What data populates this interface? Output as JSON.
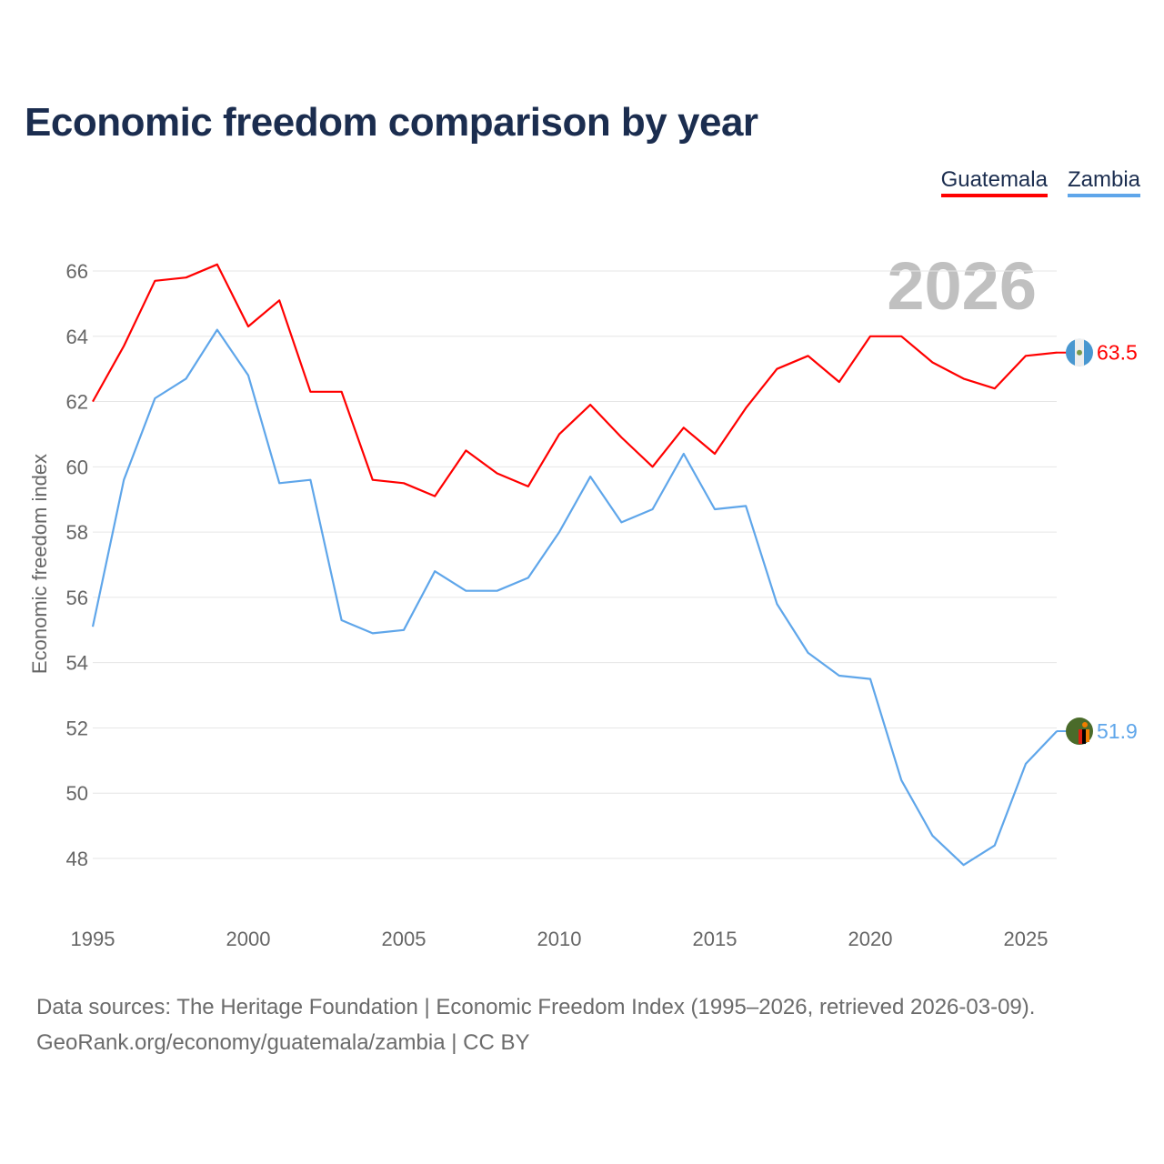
{
  "title": "Economic freedom comparison by year",
  "year_watermark": "2026",
  "footer": {
    "line1": "Data sources: The Heritage Foundation | Economic Freedom Index (1995–2026, retrieved 2026-03-09).",
    "line2": "GeoRank.org/economy/guatemala/zambia | CC BY"
  },
  "chart_data": {
    "type": "line",
    "title": "Economic freedom comparison by year",
    "xlabel": "",
    "ylabel": "Economic freedom index",
    "xlim": [
      1995,
      2026
    ],
    "ylim": [
      47,
      67
    ],
    "xticks": [
      1995,
      2000,
      2005,
      2010,
      2015,
      2020,
      2025
    ],
    "yticks": [
      48,
      50,
      52,
      54,
      56,
      58,
      60,
      62,
      64,
      66
    ],
    "grid": true,
    "legend_placement": "top-right",
    "x": [
      1995,
      1996,
      1997,
      1998,
      1999,
      2000,
      2001,
      2002,
      2003,
      2004,
      2005,
      2006,
      2007,
      2008,
      2009,
      2010,
      2011,
      2012,
      2013,
      2014,
      2015,
      2016,
      2017,
      2018,
      2019,
      2020,
      2021,
      2022,
      2023,
      2024,
      2025,
      2026
    ],
    "series": [
      {
        "name": "Guatemala",
        "color": "#ff0000",
        "end_label": "63.5",
        "values": [
          62.0,
          63.7,
          65.7,
          65.8,
          66.2,
          64.3,
          65.1,
          62.3,
          62.3,
          59.6,
          59.5,
          59.1,
          60.5,
          59.8,
          59.4,
          61.0,
          61.9,
          60.9,
          60.0,
          61.2,
          60.4,
          61.8,
          63.0,
          63.4,
          62.6,
          64.0,
          64.0,
          63.2,
          62.7,
          62.4,
          63.4,
          63.5
        ]
      },
      {
        "name": "Zambia",
        "color": "#5fa6ea",
        "end_label": "51.9",
        "values": [
          55.1,
          59.6,
          62.1,
          62.7,
          64.2,
          62.8,
          59.5,
          59.6,
          55.3,
          54.9,
          55.0,
          56.8,
          56.2,
          56.2,
          56.6,
          58.0,
          59.7,
          58.3,
          58.7,
          60.4,
          58.7,
          58.8,
          55.8,
          54.3,
          53.6,
          53.5,
          50.4,
          48.7,
          47.8,
          48.4,
          50.9,
          51.9
        ]
      }
    ]
  }
}
